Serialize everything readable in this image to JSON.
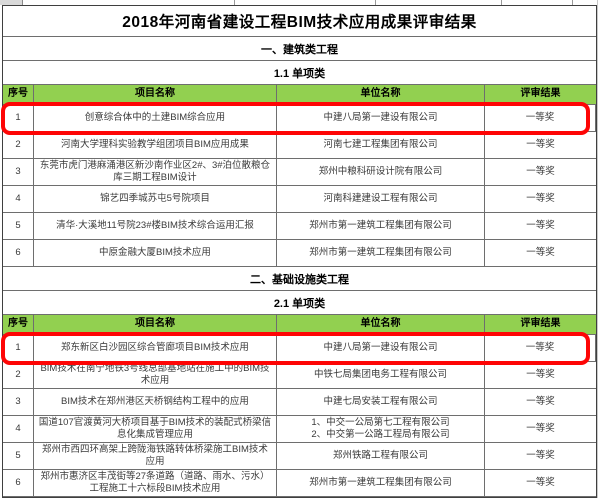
{
  "page": {
    "title": "2018年河南省建设工程BIM技术应用成果评审结果"
  },
  "columns": [
    {
      "key": "no",
      "label": "序号"
    },
    {
      "key": "project",
      "label": "项目名称"
    },
    {
      "key": "unit",
      "label": "单位名称"
    },
    {
      "key": "result",
      "label": "评审结果"
    }
  ],
  "sections": [
    {
      "heading": "一、建筑类工程",
      "subheading": "1.1 单项类",
      "rows": [
        {
          "no": "1",
          "project": "创意综合体中的土建BIM综合应用",
          "unit_lines": [
            "中建八局第一建设有限公司"
          ],
          "result": "一等奖",
          "highlighted": true
        },
        {
          "no": "2",
          "project": "河南大学理科实验教学组团项目BIM应用成果",
          "unit_lines": [
            "河南七建工程集团有限公司"
          ],
          "result": "一等奖",
          "highlighted": false
        },
        {
          "no": "3",
          "project": "东莞市虎门港麻涌港区新沙南作业区2#、3#泊位散粮仓库三期工程BIM设计",
          "unit_lines": [
            "郑州中粮科研设计院有限公司"
          ],
          "result": "一等奖",
          "highlighted": false
        },
        {
          "no": "4",
          "project": "锦艺四季城苏屯5号院项目",
          "unit_lines": [
            "河南科建建设工程有限公司"
          ],
          "result": "一等奖",
          "highlighted": false
        },
        {
          "no": "5",
          "project": "清华·大溪地11号院23#楼BIM技术综合运用汇报",
          "unit_lines": [
            "郑州市第一建筑工程集团有限公司"
          ],
          "result": "一等奖",
          "highlighted": false
        },
        {
          "no": "6",
          "project": "中原金融大厦BIM技术应用",
          "unit_lines": [
            "郑州市第一建筑工程集团有限公司"
          ],
          "result": "一等奖",
          "highlighted": false
        }
      ]
    },
    {
      "heading": "二、基础设施类工程",
      "subheading": "2.1 单项类",
      "rows": [
        {
          "no": "1",
          "project": "郑东新区白沙园区综合管廊项目BIM技术应用",
          "unit_lines": [
            "中建八局第一建设有限公司"
          ],
          "result": "一等奖",
          "highlighted": true
        },
        {
          "no": "2",
          "project": "BIM技术在南宁地铁3号线总部基地站在施工中的BIM技术应用",
          "unit_lines": [
            "中铁七局集团电务工程有限公司"
          ],
          "result": "一等奖",
          "highlighted": false
        },
        {
          "no": "3",
          "project": "BIM技术在郑州港区天桥钢结构工程中的应用",
          "unit_lines": [
            "中建七局安装工程有限公司"
          ],
          "result": "一等奖",
          "highlighted": false
        },
        {
          "no": "4",
          "project": "国道107官渡黄河大桥项目基于BIM技术的装配式桥梁信息化集成管理应用",
          "unit_lines": [
            "1、中交一公局第七工程有限公司",
            "2、中交第一公路工程局有限公司"
          ],
          "result": "一等奖",
          "highlighted": false
        },
        {
          "no": "5",
          "project": "郑州市西四环高架上跨陇海铁路转体桥梁施工BIM技术应用",
          "unit_lines": [
            "郑州铁路工程有限公司"
          ],
          "result": "一等奖",
          "highlighted": false
        },
        {
          "no": "6",
          "project": "郑州市惠济区丰茂街等27条道路（道路、雨水、污水）工程施工十六标段BIM技术应用",
          "unit_lines": [
            "郑州市第一建筑工程集团有限公司"
          ],
          "result": "一等奖",
          "highlighted": false
        }
      ]
    }
  ],
  "colors": {
    "header_green": "#92d050",
    "highlight_red": "#fe0505"
  }
}
